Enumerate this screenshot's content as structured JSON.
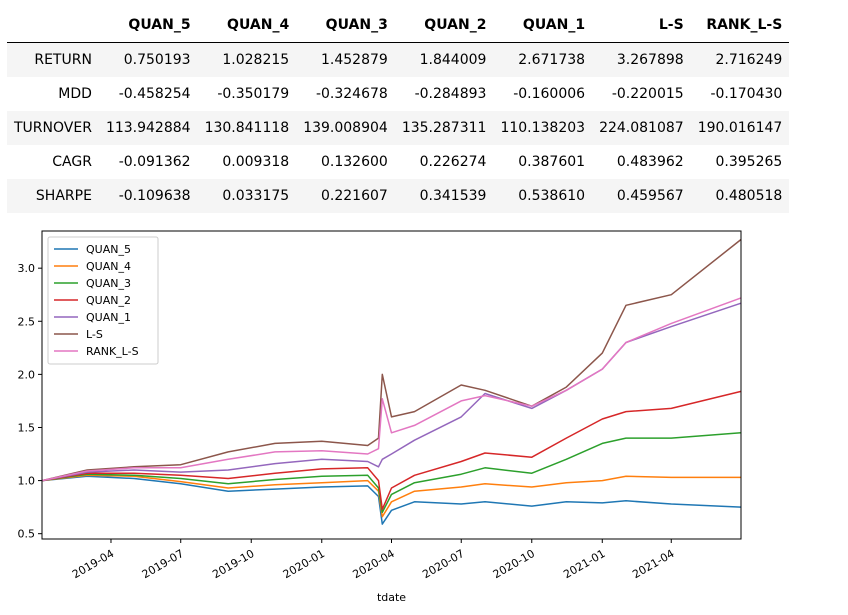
{
  "table": {
    "columns": [
      "QUAN_5",
      "QUAN_4",
      "QUAN_3",
      "QUAN_2",
      "QUAN_1",
      "L-S",
      "RANK_L-S"
    ],
    "rows": [
      {
        "label": "RETURN",
        "values": [
          "0.750193",
          "1.028215",
          "1.452879",
          "1.844009",
          "2.671738",
          "3.267898",
          "2.716249"
        ]
      },
      {
        "label": "MDD",
        "values": [
          "-0.458254",
          "-0.350179",
          "-0.324678",
          "-0.284893",
          "-0.160006",
          "-0.220015",
          "-0.170430"
        ]
      },
      {
        "label": "TURNOVER",
        "values": [
          "113.942884",
          "130.841118",
          "139.008904",
          "135.287311",
          "110.138203",
          "224.081087",
          "190.016147"
        ]
      },
      {
        "label": "CAGR",
        "values": [
          "-0.091362",
          "0.009318",
          "0.132600",
          "0.226274",
          "0.387601",
          "0.483962",
          "0.395265"
        ]
      },
      {
        "label": "SHARPE",
        "values": [
          "-0.109638",
          "0.033175",
          "0.221607",
          "0.341539",
          "0.538610",
          "0.459567",
          "0.480518"
        ]
      }
    ]
  },
  "chart_data": {
    "type": "line",
    "xlabel": "tdate",
    "ylabel": "",
    "title": "",
    "xlim": [
      "2019-01-01",
      "2021-07-01"
    ],
    "ylim": [
      0.45,
      3.35
    ],
    "xticks": [
      "2019-04",
      "2019-07",
      "2019-10",
      "2020-01",
      "2020-04",
      "2020-07",
      "2020-10",
      "2021-01",
      "2021-04"
    ],
    "yticks": [
      "0.5",
      "1.0",
      "1.5",
      "2.0",
      "2.5",
      "3.0"
    ],
    "legend": "top-left",
    "grid": false,
    "x": [
      "2019-01-01",
      "2019-03-01",
      "2019-05-01",
      "2019-07-01",
      "2019-09-01",
      "2019-11-01",
      "2020-01-01",
      "2020-03-01",
      "2020-03-15",
      "2020-03-20",
      "2020-04-01",
      "2020-05-01",
      "2020-07-01",
      "2020-08-01",
      "2020-10-01",
      "2020-11-15",
      "2021-01-01",
      "2021-02-01",
      "2021-04-01",
      "2021-07-01"
    ],
    "series": [
      {
        "name": "QUAN_5",
        "color": "#1f77b4",
        "values": [
          1.0,
          1.04,
          1.02,
          0.97,
          0.9,
          0.92,
          0.94,
          0.95,
          0.85,
          0.59,
          0.72,
          0.8,
          0.78,
          0.8,
          0.76,
          0.8,
          0.79,
          0.81,
          0.78,
          0.75
        ]
      },
      {
        "name": "QUAN_4",
        "color": "#ff7f0e",
        "values": [
          1.0,
          1.05,
          1.04,
          0.99,
          0.93,
          0.96,
          0.98,
          1.0,
          0.9,
          0.66,
          0.8,
          0.9,
          0.94,
          0.97,
          0.94,
          0.98,
          1.0,
          1.04,
          1.03,
          1.03
        ]
      },
      {
        "name": "QUAN_3",
        "color": "#2ca02c",
        "values": [
          1.0,
          1.06,
          1.05,
          1.02,
          0.97,
          1.01,
          1.04,
          1.05,
          0.93,
          0.7,
          0.87,
          0.98,
          1.06,
          1.12,
          1.07,
          1.2,
          1.35,
          1.4,
          1.4,
          1.45
        ]
      },
      {
        "name": "QUAN_2",
        "color": "#d62728",
        "values": [
          1.0,
          1.07,
          1.07,
          1.05,
          1.02,
          1.07,
          1.11,
          1.12,
          1.0,
          0.73,
          0.93,
          1.05,
          1.18,
          1.26,
          1.22,
          1.4,
          1.58,
          1.65,
          1.68,
          1.84
        ]
      },
      {
        "name": "QUAN_1",
        "color": "#9467bd",
        "values": [
          1.0,
          1.08,
          1.1,
          1.08,
          1.1,
          1.16,
          1.2,
          1.18,
          1.13,
          1.2,
          1.25,
          1.38,
          1.6,
          1.82,
          1.68,
          1.85,
          2.05,
          2.3,
          2.45,
          2.67
        ]
      },
      {
        "name": "L-S",
        "color": "#8c564b",
        "values": [
          1.0,
          1.1,
          1.13,
          1.15,
          1.27,
          1.35,
          1.37,
          1.33,
          1.4,
          2.0,
          1.6,
          1.65,
          1.9,
          1.85,
          1.7,
          1.88,
          2.2,
          2.65,
          2.75,
          3.27
        ]
      },
      {
        "name": "RANK_L-S",
        "color": "#e377c2",
        "values": [
          1.0,
          1.09,
          1.12,
          1.12,
          1.2,
          1.27,
          1.28,
          1.25,
          1.3,
          1.77,
          1.45,
          1.52,
          1.75,
          1.8,
          1.7,
          1.85,
          2.05,
          2.3,
          2.48,
          2.72
        ]
      }
    ]
  }
}
